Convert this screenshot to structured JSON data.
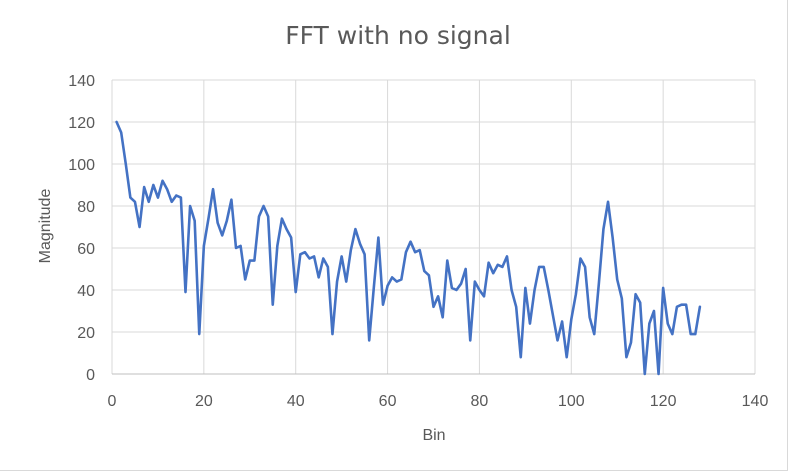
{
  "chart_data": {
    "type": "line",
    "title": "FFT with no signal",
    "xlabel": "Bin",
    "ylabel": "Magnitude",
    "xlim": [
      0,
      140
    ],
    "ylim": [
      0,
      140
    ],
    "xticks": [
      "0",
      "20",
      "40",
      "60",
      "80",
      "100",
      "120",
      "140"
    ],
    "yticks": [
      "0",
      "20",
      "40",
      "60",
      "80",
      "100",
      "120",
      "140"
    ],
    "grid": "both",
    "legend": "none",
    "series_color": "#4472c4",
    "series": [
      {
        "x": [
          1,
          2,
          3,
          4,
          5,
          6,
          7,
          8,
          9,
          10,
          11,
          12,
          13,
          14,
          15,
          16,
          17,
          18,
          19,
          20,
          21,
          22,
          23,
          24,
          25,
          26,
          27,
          28,
          29,
          30,
          31,
          32,
          33,
          34,
          35,
          36,
          37,
          38,
          39,
          40,
          41,
          42,
          43,
          44,
          45,
          46,
          47,
          48,
          49,
          50,
          51,
          52,
          53,
          54,
          55,
          56,
          57,
          58,
          59,
          60,
          61,
          62,
          63,
          64,
          65,
          66,
          67,
          68,
          69,
          70,
          71,
          72,
          73,
          74,
          75,
          76,
          77,
          78,
          79,
          80,
          81,
          82,
          83,
          84,
          85,
          86,
          87,
          88,
          89,
          90,
          91,
          92,
          93,
          94,
          95,
          96,
          97,
          98,
          99,
          100,
          101,
          102,
          103,
          104,
          105,
          106,
          107,
          108,
          109,
          110,
          111,
          112,
          113,
          114,
          115,
          116,
          117,
          118,
          119,
          120,
          121,
          122,
          123,
          124,
          125,
          126,
          127,
          128
        ],
        "values": [
          120,
          115,
          100,
          84,
          82,
          70,
          89,
          82,
          90,
          84,
          92,
          88,
          82,
          85,
          84,
          39,
          80,
          73,
          19,
          61,
          74,
          88,
          72,
          66,
          73,
          83,
          60,
          61,
          45,
          54,
          54,
          75,
          80,
          75,
          33,
          61,
          74,
          69,
          65,
          39,
          57,
          58,
          55,
          56,
          46,
          55,
          51,
          19,
          44,
          56,
          44,
          59,
          69,
          62,
          57,
          16,
          41,
          65,
          33,
          42,
          46,
          44,
          45,
          58,
          63,
          58,
          59,
          49,
          47,
          32,
          37,
          27,
          54,
          41,
          40,
          43,
          50,
          16,
          44,
          40,
          37,
          53,
          48,
          52,
          51,
          56,
          40,
          32,
          8,
          41,
          24,
          40,
          51,
          51,
          40,
          28,
          16,
          25,
          8,
          26,
          38,
          55,
          51,
          27,
          19,
          43,
          69,
          82,
          65,
          45,
          36,
          8,
          15,
          38,
          34,
          0,
          24,
          30,
          0,
          41,
          24,
          19,
          32,
          33,
          33,
          19,
          19,
          32
        ]
      }
    ]
  }
}
